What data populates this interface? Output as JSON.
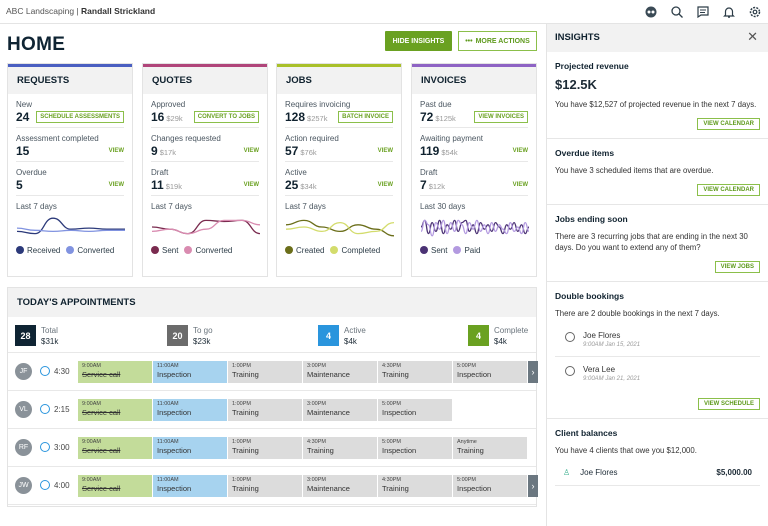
{
  "topbar": {
    "company": "ABC Landscaping",
    "separator": "|",
    "user": "Randall Strickland",
    "icons": [
      "account-switch-icon",
      "search-icon",
      "chat-icon",
      "bell-icon",
      "gear-icon"
    ]
  },
  "page": {
    "title": "HOME",
    "hide_insights": "HIDE INSIGHTS",
    "more_actions": "MORE ACTIONS"
  },
  "cards": [
    {
      "title": "REQUESTS",
      "color": "#4a5fc1",
      "rows": [
        {
          "label": "New",
          "count": "24",
          "amount": "",
          "action": "SCHEDULE ASSESSMENTS",
          "boxed": true
        },
        {
          "label": "Assessment completed",
          "count": "15",
          "amount": "",
          "action": "VIEW",
          "boxed": false
        },
        {
          "label": "Overdue",
          "count": "5",
          "amount": "",
          "action": "VIEW",
          "boxed": false
        }
      ],
      "period": "Last 7 days",
      "series": [
        {
          "name": "Received",
          "color": "#2c3a7a",
          "values": [
            3,
            2,
            9,
            4,
            4.5,
            4,
            4
          ]
        },
        {
          "name": "Converted",
          "color": "#8193e0",
          "values": [
            4.5,
            3.5,
            3,
            3.5,
            3,
            3.5,
            3.5
          ]
        }
      ]
    },
    {
      "title": "QUOTES",
      "color": "#b0457a",
      "rows": [
        {
          "label": "Approved",
          "count": "16",
          "amount": "$29k",
          "action": "CONVERT TO JOBS",
          "boxed": true
        },
        {
          "label": "Changes requested",
          "count": "9",
          "amount": "$17k",
          "action": "VIEW",
          "boxed": false
        },
        {
          "label": "Draft",
          "count": "11",
          "amount": "$19k",
          "action": "VIEW",
          "boxed": false
        }
      ],
      "period": "Last 7 days",
      "series": [
        {
          "name": "Sent",
          "color": "#7a2b4f",
          "values": [
            5,
            4,
            2,
            8,
            7.5,
            8,
            2
          ]
        },
        {
          "name": "Converted",
          "color": "#d98bb0",
          "values": [
            3,
            4,
            2,
            4,
            8,
            8,
            6
          ]
        }
      ]
    },
    {
      "title": "JOBS",
      "color": "#a9c02a",
      "rows": [
        {
          "label": "Requires invoicing",
          "count": "128",
          "amount": "$257k",
          "action": "BATCH INVOICE",
          "boxed": true
        },
        {
          "label": "Action required",
          "count": "57",
          "amount": "$76k",
          "action": "VIEW",
          "boxed": false
        },
        {
          "label": "Active",
          "count": "25",
          "amount": "$34k",
          "action": "VIEW",
          "boxed": false
        }
      ],
      "period": "Last 7 days",
      "series": [
        {
          "name": "Created",
          "color": "#6b6e1a",
          "values": [
            6,
            8,
            5,
            3,
            6,
            4,
            1
          ]
        },
        {
          "name": "Completed",
          "color": "#d3dc6c",
          "values": [
            4,
            5,
            3,
            7,
            2,
            3,
            7
          ]
        }
      ]
    },
    {
      "title": "INVOICES",
      "color": "#8e63c4",
      "rows": [
        {
          "label": "Past due",
          "count": "72",
          "amount": "$125k",
          "action": "VIEW INVOICES",
          "boxed": true
        },
        {
          "label": "Awaiting payment",
          "count": "119",
          "amount": "$54k",
          "action": "VIEW",
          "boxed": false
        },
        {
          "label": "Draft",
          "count": "7",
          "amount": "$12k",
          "action": "VIEW",
          "boxed": false
        }
      ],
      "period": "Last 30 days",
      "series": [
        {
          "name": "Sent",
          "color": "#4b3274",
          "values": [
            5,
            8,
            2,
            7,
            3,
            8,
            2,
            6,
            4,
            8,
            3,
            7,
            8,
            3,
            6,
            2,
            7,
            4,
            6,
            3,
            7,
            5,
            2,
            6,
            4,
            7,
            3,
            6,
            2,
            5
          ]
        },
        {
          "name": "Paid",
          "color": "#b39ae0",
          "values": [
            3,
            8,
            6,
            1,
            7,
            4,
            8,
            2,
            7,
            3,
            8,
            6,
            2,
            7,
            4,
            8,
            3,
            6,
            2,
            7,
            3,
            6,
            4,
            2,
            7,
            3,
            5,
            2,
            7,
            3
          ]
        }
      ]
    }
  ],
  "appointments": {
    "title": "TODAY'S APPOINTMENTS",
    "stats": [
      {
        "count": "28",
        "label": "Total",
        "amount": "$31k",
        "color": "#0f2433"
      },
      {
        "count": "20",
        "label": "To go",
        "amount": "$23k",
        "color": "#6b6b6b"
      },
      {
        "count": "4",
        "label": "Active",
        "amount": "$4k",
        "color": "#2a95dd"
      },
      {
        "count": "4",
        "label": "Complete",
        "amount": "$4k",
        "color": "#6aa121"
      }
    ],
    "rows": [
      {
        "initials": "JF",
        "duration": "4:30",
        "more": true,
        "slots": [
          {
            "time": "9:00AM",
            "name": "Service call",
            "state": "done"
          },
          {
            "time": "11:00AM",
            "name": "Inspection",
            "state": "active"
          },
          {
            "time": "1:00PM",
            "name": "Training",
            "state": ""
          },
          {
            "time": "3:00PM",
            "name": "Maintenance",
            "state": ""
          },
          {
            "time": "4:30PM",
            "name": "Training",
            "state": ""
          },
          {
            "time": "5:00PM",
            "name": "Inspection",
            "state": ""
          }
        ]
      },
      {
        "initials": "VL",
        "duration": "2:15",
        "more": false,
        "slots": [
          {
            "time": "9:00AM",
            "name": "Service call",
            "state": "done"
          },
          {
            "time": "11:00AM",
            "name": "Inspection",
            "state": "active"
          },
          {
            "time": "1:00PM",
            "name": "Training",
            "state": ""
          },
          {
            "time": "3:00PM",
            "name": "Maintenance",
            "state": ""
          },
          {
            "time": "5:00PM",
            "name": "Inspection",
            "state": ""
          }
        ]
      },
      {
        "initials": "RF",
        "duration": "3:00",
        "more": false,
        "slots": [
          {
            "time": "9:00AM",
            "name": "Service call",
            "state": "done"
          },
          {
            "time": "11:00AM",
            "name": "Inspection",
            "state": "active"
          },
          {
            "time": "1:00PM",
            "name": "Training",
            "state": ""
          },
          {
            "time": "4:30PM",
            "name": "Training",
            "state": ""
          },
          {
            "time": "5:00PM",
            "name": "Inspection",
            "state": ""
          },
          {
            "time": "Anytime",
            "name": "Training",
            "state": ""
          }
        ]
      },
      {
        "initials": "JW",
        "duration": "4:00",
        "more": true,
        "slots": [
          {
            "time": "9:00AM",
            "name": "Service call",
            "state": "done"
          },
          {
            "time": "11:00AM",
            "name": "Inspection",
            "state": "active"
          },
          {
            "time": "1:00PM",
            "name": "Training",
            "state": ""
          },
          {
            "time": "3:00PM",
            "name": "Maintenance",
            "state": ""
          },
          {
            "time": "4:30PM",
            "name": "Training",
            "state": ""
          },
          {
            "time": "5:00PM",
            "name": "Inspection",
            "state": ""
          }
        ]
      }
    ]
  },
  "insights": {
    "title": "INSIGHTS",
    "projected": {
      "title": "Projected revenue",
      "value": "$12.5K",
      "text": "You have $12,527 of projected revenue in the next 7 days.",
      "button": "VIEW CALENDAR"
    },
    "overdue": {
      "title": "Overdue items",
      "text": "You have 3 scheduled items that are overdue.",
      "button": "VIEW CALENDAR"
    },
    "jobs": {
      "title": "Jobs ending soon",
      "text": "There are 3 recurring jobs that are ending in the next 30 days. Do you want to extend any of them?",
      "button": "VIEW JOBS"
    },
    "double": {
      "title": "Double bookings",
      "text": "There are 2 double bookings in the next 7 days.",
      "people": [
        {
          "name": "Joe Flores",
          "date": "9:00AM Jan 15, 2021"
        },
        {
          "name": "Vera Lee",
          "date": "9:00AM Jan 21, 2021"
        }
      ],
      "button": "VIEW SCHEDULE"
    },
    "balances": {
      "title": "Client balances",
      "text": "You have 4 clients that owe you $12,000.",
      "clients": [
        {
          "name": "Joe Flores",
          "amount": "$5,000.00"
        }
      ]
    }
  }
}
